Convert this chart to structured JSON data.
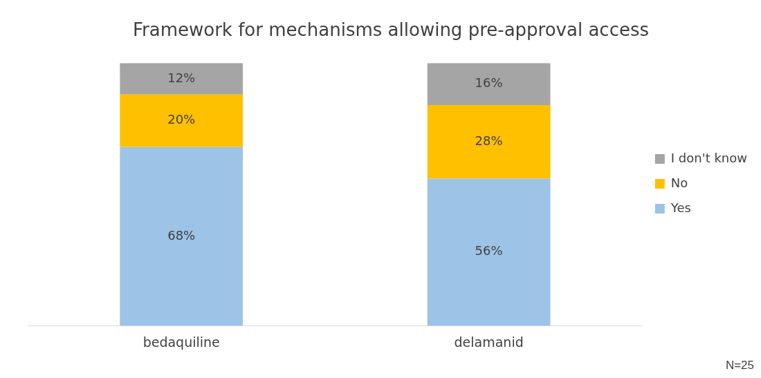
{
  "chart_data": {
    "type": "bar",
    "title": "Framework for mechanisms allowing pre-approval access",
    "categories": [
      "bedaquiline",
      "delamanid"
    ],
    "stacked": true,
    "tick_labels": "x",
    "grid": false,
    "legend": "right",
    "series": [
      {
        "name": "Yes",
        "color": "#9dc3e6",
        "values": [
          68,
          56
        ],
        "value_labels": [
          "68%",
          "56%"
        ]
      },
      {
        "name": "No",
        "color": "#ffc000",
        "values": [
          20,
          28
        ],
        "value_labels": [
          "20%",
          "28%"
        ]
      },
      {
        "name": "I don't know",
        "color": "#a5a5a5",
        "values": [
          12,
          16
        ],
        "value_labels": [
          "12%",
          "16%"
        ]
      }
    ],
    "annotations": [
      "N=25"
    ]
  }
}
